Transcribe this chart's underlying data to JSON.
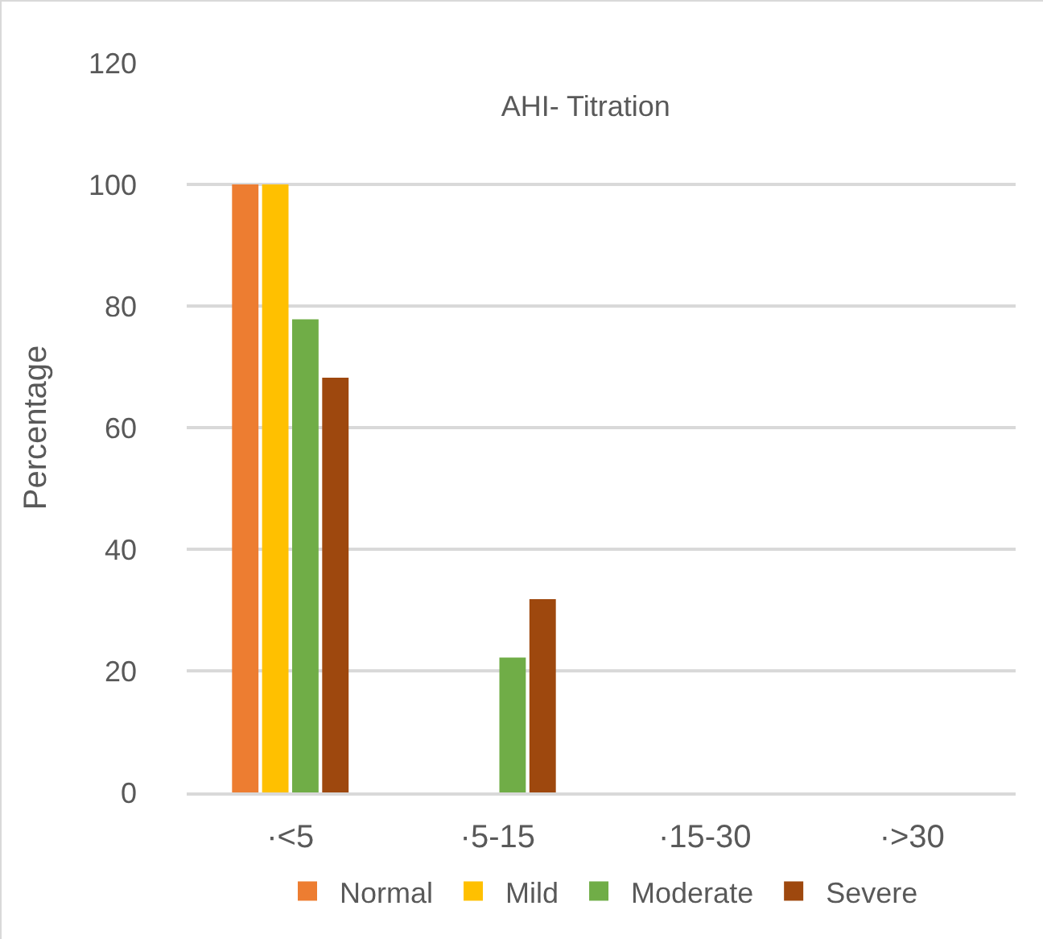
{
  "chart_data": {
    "type": "bar",
    "title": "AHI- Titration",
    "ylabel": "Percentage",
    "categories": [
      "·<5",
      "·5-15",
      "·15-30",
      "·>30"
    ],
    "series": [
      {
        "name": "Normal",
        "color": "#ed7d31",
        "values": [
          100,
          0,
          0,
          0
        ]
      },
      {
        "name": "Mild",
        "color": "#ffc000",
        "values": [
          100,
          0,
          0,
          0
        ]
      },
      {
        "name": "Moderate",
        "color": "#70ad47",
        "values": [
          77.8,
          22.2,
          0,
          0
        ]
      },
      {
        "name": "Severe",
        "color": "#9e480e",
        "values": [
          68.2,
          31.8,
          0,
          0
        ]
      }
    ],
    "ylim": [
      0,
      120
    ],
    "yticks": [
      0,
      20,
      40,
      60,
      80,
      100,
      120
    ],
    "grid": "y",
    "legend": "bottom"
  }
}
